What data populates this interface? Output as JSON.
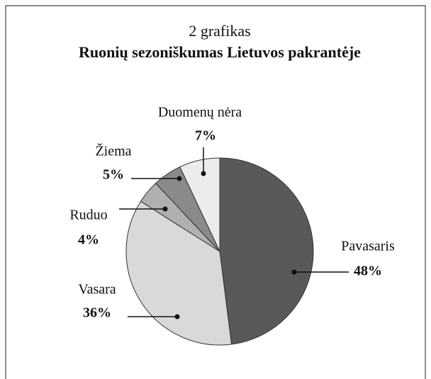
{
  "chart_data": {
    "type": "pie",
    "subtitle": "2 grafikas",
    "title": "Ruonių sezoniškumas Lietuvos pakrantėje",
    "categories": [
      "Pavasaris",
      "Vasara",
      "Ruduo",
      "Žiema",
      "Duomenų nėra"
    ],
    "values": [
      48,
      36,
      4,
      5,
      7
    ],
    "value_labels": [
      "48%",
      "36%",
      "4%",
      "5%",
      "7%"
    ],
    "colors": [
      "#595959",
      "#d9d9d9",
      "#b0b0b0",
      "#8a8a8a",
      "#ececec"
    ]
  }
}
